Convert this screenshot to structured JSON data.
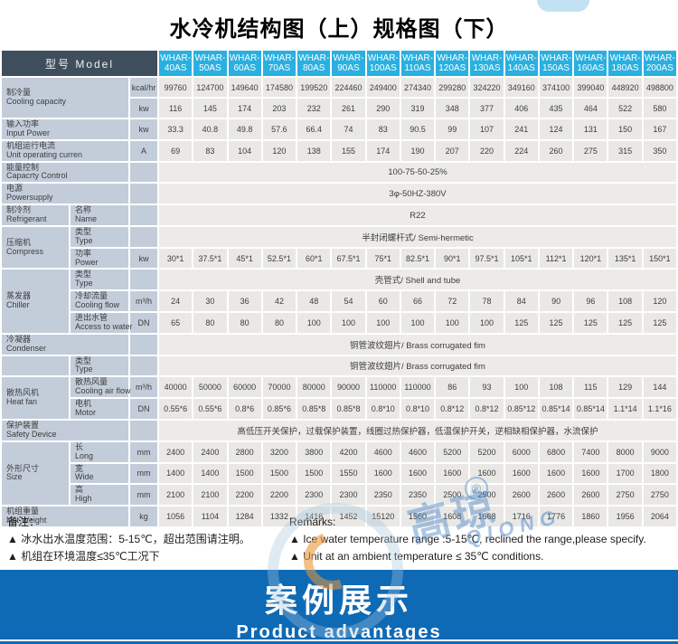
{
  "page": {
    "title": "水冷机结构图（上）规格图（下）"
  },
  "table": {
    "corner_label": "型号  Model",
    "models": [
      "WHAR-\n40AS",
      "WHAR-\n50AS",
      "WHAR-\n60AS",
      "WHAR-\n70AS",
      "WHAR-\n80AS",
      "WHAR-\n90AS",
      "WHAR-\n100AS",
      "WHAR-\n110AS",
      "WHAR-\n120AS",
      "WHAR-\n130AS",
      "WHAR-\n140AS",
      "WHAR-\n150AS",
      "WHAR-\n160AS",
      "WHAR-\n180AS",
      "WHAR-\n200AS"
    ],
    "rows": [
      {
        "cat": [
          "制冷量",
          "Cooling capacity"
        ],
        "catcols": 2,
        "catrows": 2,
        "unit": "kcal/hr",
        "values": [
          "99760",
          "124700",
          "149640",
          "174580",
          "199520",
          "224460",
          "249400",
          "274340",
          "299280",
          "324220",
          "349160",
          "374100",
          "399040",
          "448920",
          "498800"
        ]
      },
      {
        "unit": "kw",
        "values": [
          "116",
          "145",
          "174",
          "203",
          "232",
          "261",
          "290",
          "319",
          "348",
          "377",
          "406",
          "435",
          "464",
          "522",
          "580"
        ]
      },
      {
        "cat": [
          "输入功率",
          "Input Power"
        ],
        "catcols": 2,
        "unit": "kw",
        "values": [
          "33.3",
          "40.8",
          "49.8",
          "57.6",
          "66.4",
          "74",
          "83",
          "90.5",
          "99",
          "107",
          "241",
          "124",
          "131",
          "150",
          "167"
        ]
      },
      {
        "cat": [
          "机组运行电流",
          "Unit operating curren"
        ],
        "catcols": 2,
        "unit": "A",
        "values": [
          "69",
          "83",
          "104",
          "120",
          "138",
          "155",
          "174",
          "190",
          "207",
          "220",
          "224",
          "260",
          "275",
          "315",
          "350"
        ]
      },
      {
        "cat": [
          "能量控制",
          "Capacrty Control"
        ],
        "catcols": 2,
        "unit": "",
        "merged": "100-75-50-25%"
      },
      {
        "cat": [
          "电源",
          "Powersupply"
        ],
        "catcols": 2,
        "unit": "",
        "merged": "3φ-50HZ-380V"
      },
      {
        "cat": [
          "制冷剂",
          "Refrigerant"
        ],
        "sub": [
          "名称",
          "Name"
        ],
        "unit": "",
        "merged": "R22"
      },
      {
        "cat": [
          "压缩机",
          "Compress"
        ],
        "catrows": 2,
        "sub": [
          "类型",
          "Type"
        ],
        "unit": "",
        "merged": "半封闭螺杆式/ Semi-hermetic"
      },
      {
        "sub": [
          "功率",
          "Power"
        ],
        "unit": "kw",
        "values": [
          "30*1",
          "37.5*1",
          "45*1",
          "52.5*1",
          "60*1",
          "67.5*1",
          "75*1",
          "82.5*1",
          "90*1",
          "97.5*1",
          "105*1",
          "112*1",
          "120*1",
          "135*1",
          "150*1"
        ]
      },
      {
        "cat": [
          "蒸发器",
          "Chiller"
        ],
        "catrows": 3,
        "sub": [
          "类型",
          "Type"
        ],
        "unit": "",
        "merged": "壳管式/ Shell and tube"
      },
      {
        "sub": [
          "冷却流量",
          "Cooling flow"
        ],
        "unit": "m³/h",
        "values": [
          "24",
          "30",
          "36",
          "42",
          "48",
          "54",
          "60",
          "66",
          "72",
          "78",
          "84",
          "90",
          "96",
          "108",
          "120"
        ]
      },
      {
        "sub": [
          "进出水管",
          "Access to water"
        ],
        "unit": "DN",
        "values": [
          "65",
          "80",
          "80",
          "80",
          "100",
          "100",
          "100",
          "100",
          "100",
          "100",
          "125",
          "125",
          "125",
          "125",
          "125"
        ]
      },
      {
        "cat": [
          "冷凝器",
          "Condenser"
        ],
        "catcols": 2,
        "unit": "",
        "merged": "铜管波纹翅片/ Brass corrugated fim"
      },
      {
        "cat": [
          "",
          ""
        ],
        "sub": [
          "类型",
          "Type"
        ],
        "unit": "",
        "merged": "铜管波纹翅片/ Brass corrugated fim"
      },
      {
        "cat": [
          "散热风机",
          "Heat fan"
        ],
        "catrows": 2,
        "sub": [
          "散热风量",
          "Cooling air flow"
        ],
        "unit": "m³/h",
        "values": [
          "40000",
          "50000",
          "60000",
          "70000",
          "80000",
          "90000",
          "110000",
          "110000",
          "86",
          "93",
          "100",
          "108",
          "115",
          "129",
          "144"
        ]
      },
      {
        "sub": [
          "电机",
          "Motor"
        ],
        "unit": "DN",
        "values": [
          "0.55*6",
          "0.55*6",
          "0.8*6",
          "0.85*6",
          "0.85*8",
          "0.85*8",
          "0.8*10",
          "0.8*10",
          "0.8*12",
          "0.8*12",
          "0.85*12",
          "0.85*14",
          "0.85*14",
          "1.1*14",
          "1.1*16"
        ]
      },
      {
        "cat": [
          "保护装置",
          "Safety Device"
        ],
        "catcols": 2,
        "unit": "",
        "merged": "高低压开关保护，过载保护装置，线圈过热保护器，低温保护开关，逆相缺相保护器，水流保护"
      },
      {
        "cat": [
          "外形尺寸",
          "Size"
        ],
        "catrows": 3,
        "sub": [
          "长",
          "Long"
        ],
        "unit": "mm",
        "values": [
          "2400",
          "2400",
          "2800",
          "3200",
          "3800",
          "4200",
          "4600",
          "4600",
          "5200",
          "5200",
          "6000",
          "6800",
          "7400",
          "8000",
          "9000"
        ]
      },
      {
        "sub": [
          "宽",
          "Wide"
        ],
        "unit": "mm",
        "values": [
          "1400",
          "1400",
          "1500",
          "1500",
          "1500",
          "1550",
          "1600",
          "1600",
          "1600",
          "1600",
          "1600",
          "1600",
          "1600",
          "1700",
          "1800"
        ]
      },
      {
        "sub": [
          "高",
          "High"
        ],
        "unit": "mm",
        "values": [
          "2100",
          "2100",
          "2200",
          "2200",
          "2300",
          "2300",
          "2350",
          "2350",
          "2500",
          "2500",
          "2600",
          "2600",
          "2600",
          "2750",
          "2750"
        ]
      },
      {
        "cat": [
          "机组重量",
          "Net Weight"
        ],
        "catcols": 2,
        "unit": "kg",
        "values": [
          "1056",
          "1104",
          "1284",
          "1332",
          "1416",
          "1452",
          "15120",
          "1560",
          "1608",
          "1668",
          "1716",
          "1776",
          "1860",
          "1956",
          "2064"
        ]
      }
    ]
  },
  "notes": {
    "cn_title": "备注：",
    "cn_items": [
      "▲ 冰水出水温度范围：5-15℃，超出范围请注明。",
      "▲ 机组在环境温度≤35℃工况下"
    ],
    "en_title": "Remarks:",
    "en_items": [
      "▲ Ice water temperature range :5-15℃, reclined the range,please specify.",
      "▲ Unit at an ambient temperature ≤ 35℃ conditions."
    ]
  },
  "banner": {
    "heading": "案例展示",
    "subheading": "Product advantages"
  },
  "watermark": {
    "brand_cn": "高琼",
    "brand_en": "QIONG",
    "registered": "®"
  },
  "colors": {
    "header_dark": "#3f4e5c",
    "header_cyan": "#2ab0e0",
    "label_bg": "#c3cdda",
    "cell_bg": "#e9e8e5",
    "banner_blue": "#0f6ab5"
  }
}
